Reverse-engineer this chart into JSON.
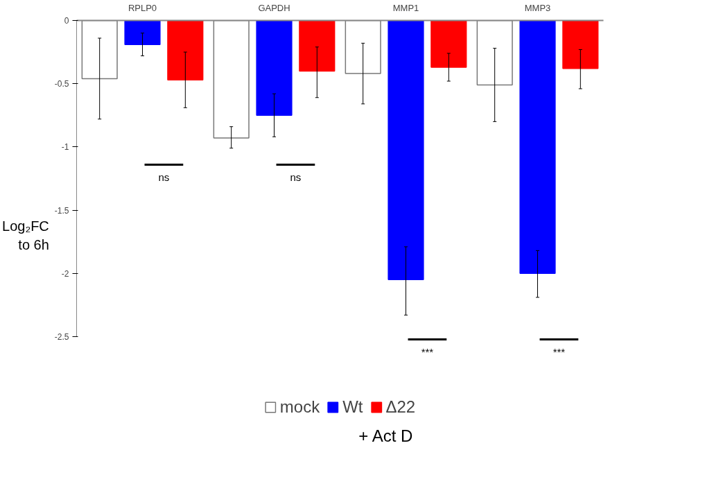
{
  "chart_data": {
    "type": "bar",
    "categories": [
      "RPLP0",
      "GAPDH",
      "MMP1",
      "MMP3"
    ],
    "ylabel": "Log₂FC\nto 6h",
    "series": [
      {
        "name": "mock",
        "color": "#ffffff",
        "values": [
          -0.46,
          -0.93,
          -0.42,
          -0.51
        ],
        "errors": [
          [
            -0.78,
            -0.14
          ],
          [
            -1.01,
            -0.84
          ],
          [
            -0.66,
            -0.18
          ],
          [
            -0.8,
            -0.22
          ]
        ]
      },
      {
        "name": "Wt",
        "color": "#0000ff",
        "values": [
          -0.19,
          -0.75,
          -2.05,
          -2.0
        ],
        "errors": [
          [
            -0.28,
            -0.1
          ],
          [
            -0.92,
            -0.58
          ],
          [
            -2.33,
            -1.79
          ],
          [
            -2.19,
            -1.82
          ]
        ]
      },
      {
        "name": "Δ22",
        "color": "#ff0000",
        "values": [
          -0.47,
          -0.4,
          -0.37,
          -0.38
        ],
        "errors": [
          [
            -0.69,
            -0.25
          ],
          [
            -0.61,
            -0.21
          ],
          [
            -0.48,
            -0.26
          ],
          [
            -0.54,
            -0.23
          ]
        ]
      }
    ],
    "ylim": [
      -2.5,
      0
    ],
    "yticks": [
      0,
      -0.5,
      -1,
      -1.5,
      -2,
      -2.5
    ],
    "grid": false,
    "legend": "bottom",
    "annotations": [
      "ns",
      "ns",
      "***",
      "***",
      "+ Act D"
    ]
  }
}
